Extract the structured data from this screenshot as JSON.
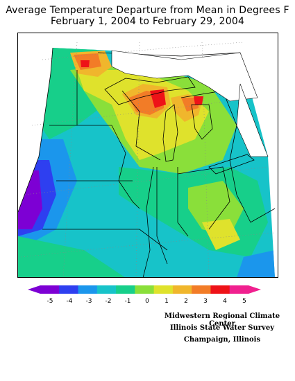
{
  "title_line1": "Average Temperature Departure from Mean in Degrees F",
  "title_line2": "February 1, 2004 to February 29, 2004",
  "legend": {
    "ticks": [
      "-5",
      "-4",
      "-3",
      "-2",
      "-1",
      "0",
      "1",
      "2",
      "3",
      "4",
      "5"
    ],
    "colors": [
      "#7d00d4",
      "#2e3ff0",
      "#1b96ec",
      "#17c3c9",
      "#17cf8a",
      "#8adf3a",
      "#dfe22c",
      "#f0b62c",
      "#f27c27",
      "#ee1218",
      "#f0208f"
    ]
  },
  "credits": {
    "line1": "Midwestern Regional Climate Center",
    "line2": "Illinois State Water Survey",
    "line3": "Champaign, Illinois"
  }
}
